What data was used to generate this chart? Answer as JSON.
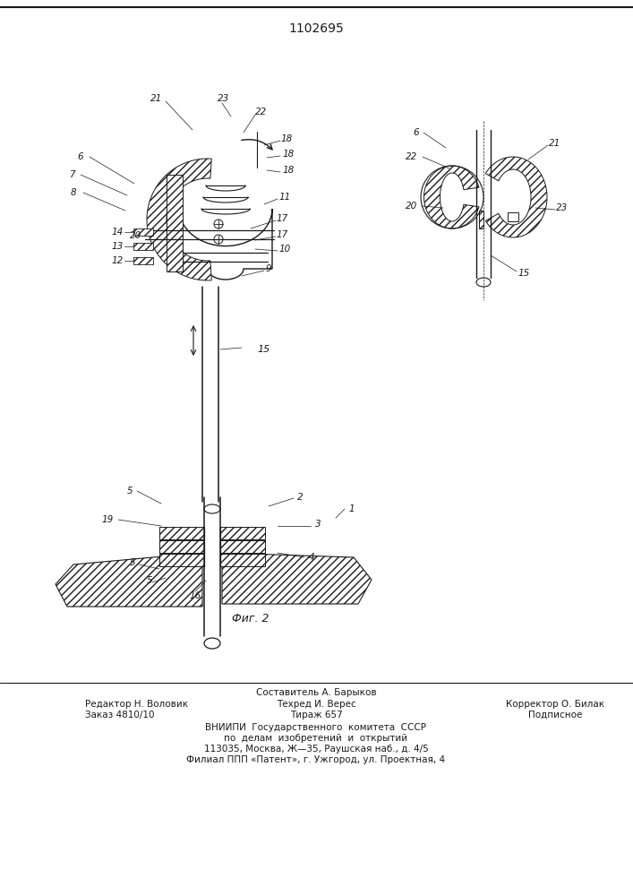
{
  "patent_number": "1102695",
  "fig_label": "Фиг. 2",
  "bg_color": "#ffffff",
  "line_color": "#1a1a1a",
  "footer": {
    "col1_line1": "Редактор Н. Воловик",
    "col1_line2": "Заказ 4810/10",
    "col2_line0": "Составитель А. Барыков",
    "col2_line1": "Техред И. Верес",
    "col2_line2": "Тираж 657",
    "col3_line1": "Корректор О. Билак",
    "col3_line2": "Подписное",
    "org1": "ВНИИПИ  Государственного  комитета  СССР",
    "org2": "по  делам  изобретений  и  открытий",
    "org3": "113035, Москва, Ж—35, Раушская наб., д. 4/5",
    "org4": "Филиал ППП «Патент», г. Ужгород, ул. Проектная, 4"
  }
}
